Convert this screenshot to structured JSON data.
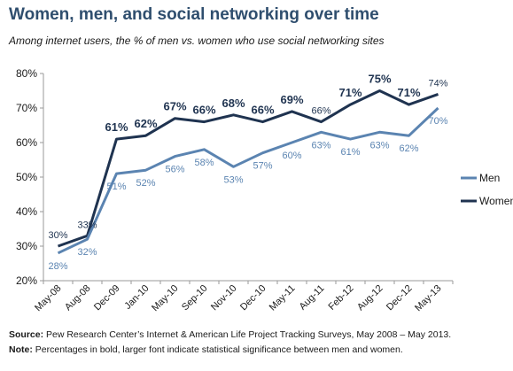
{
  "title": "Women, men, and social networking over time",
  "subtitle": "Among internet users, the % of men vs. women who use social networking sites",
  "chart_data": {
    "type": "line",
    "categories": [
      "May-08",
      "Aug-08",
      "Dec-09",
      "Jan-10",
      "May-10",
      "Sep-10",
      "Nov-10",
      "Dec-10",
      "May-11",
      "Aug-11",
      "Feb-12",
      "Aug-12",
      "Dec-12",
      "May-13"
    ],
    "series": [
      {
        "name": "Men",
        "color": "#5b84b1",
        "values": [
          28,
          32,
          51,
          52,
          56,
          58,
          53,
          57,
          60,
          63,
          61,
          63,
          62,
          70
        ],
        "labels": [
          "28%",
          "32%",
          "51%",
          "52%",
          "56%",
          "58%",
          "53%",
          "57%",
          "60%",
          "63%",
          "61%",
          "63%",
          "62%",
          "70%"
        ]
      },
      {
        "name": "Women",
        "color": "#1f3350",
        "values": [
          30,
          33,
          61,
          62,
          67,
          66,
          68,
          66,
          69,
          66,
          71,
          75,
          71,
          74
        ],
        "labels": [
          "30%",
          "33%",
          "61%",
          "62%",
          "67%",
          "66%",
          "68%",
          "66%",
          "69%",
          "66%",
          "71%",
          "75%",
          "71%",
          "74%"
        ],
        "bold": [
          false,
          false,
          true,
          true,
          true,
          true,
          true,
          true,
          true,
          false,
          true,
          true,
          true,
          false
        ]
      }
    ],
    "yticks": [
      "80%",
      "70%",
      "60%",
      "50%",
      "40%",
      "30%",
      "20%"
    ],
    "ylim": [
      20,
      80
    ],
    "grid": false,
    "legend": "right"
  },
  "source": {
    "source_label": "Source:",
    "source_text": " Pew Research Center’s Internet & American Life Project Tracking Surveys, May 2008 – May 2013.",
    "note_label": "Note:",
    "note_text": " Percentages in bold, larger font indicate statistical significance between men and women."
  }
}
